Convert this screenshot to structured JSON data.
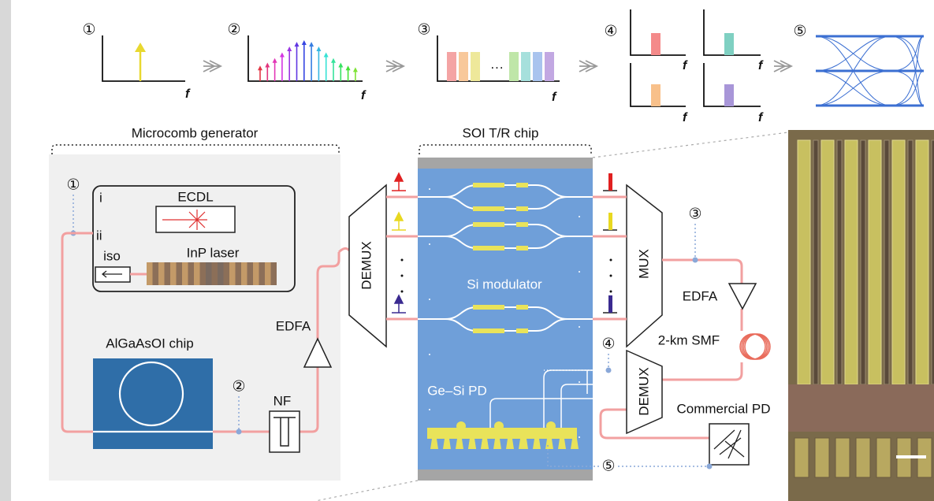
{
  "spectrum_stages": [
    {
      "marker": "①",
      "axis_label": "f"
    },
    {
      "marker": "②",
      "axis_label": "f"
    },
    {
      "marker": "③",
      "axis_label": "f",
      "ellipsis": "···"
    },
    {
      "marker": "④",
      "axis_labels": [
        "f",
        "f",
        "f",
        "f"
      ]
    },
    {
      "marker": "⑤"
    }
  ],
  "microcomb": {
    "title": "Microcomb generator",
    "inset_marker": "①",
    "pump_options": [
      "i",
      "ii"
    ],
    "ecdl": "ECDL",
    "isolator": "iso",
    "inp_laser": "InP laser",
    "chip": "AlGaAsOI chip",
    "output_marker": "②",
    "filter": "NF",
    "amplifier": "EDFA"
  },
  "soi_chip": {
    "title": "SOI T/R chip",
    "demux": "DEMUX",
    "modulator": "Si modulator",
    "mux": "MUX",
    "photodetector": "Ge–Si PD"
  },
  "link": {
    "marker_after_mux": "③",
    "amplifier": "EDFA",
    "fiber": "2-km SMF",
    "demux": "DEMUX",
    "marker_after_demux": "④",
    "receiver": "Commercial PD",
    "marker_receiver": "⑤"
  }
}
